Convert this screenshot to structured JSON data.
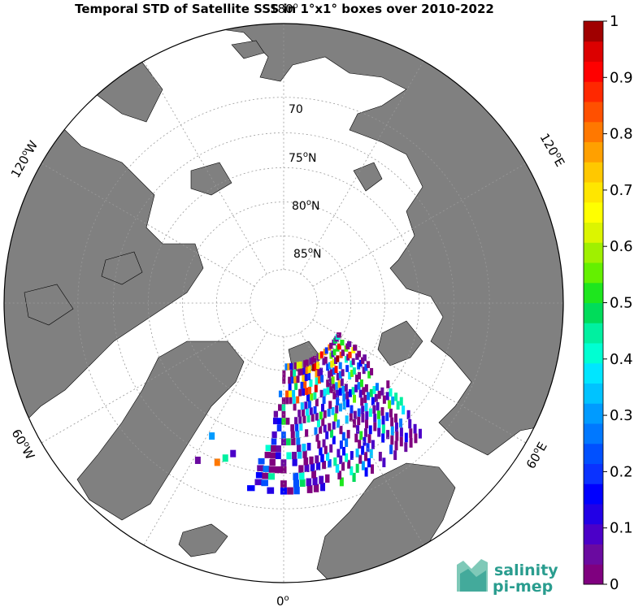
{
  "title": "Temporal STD of Satellite SSS in 1°x1° boxes over 2010-2022",
  "map": {
    "projection": "north polar stereographic",
    "land_color": "#808080",
    "ocean_color": "#ffffff",
    "lat_labels": [
      "70",
      "75",
      "80",
      "85"
    ],
    "lat_suffix": "N",
    "lon_labels": {
      "top": "180",
      "bottom": "0",
      "left_upper": "120",
      "left_lower": "60",
      "right_upper": "120",
      "right_lower": "60"
    },
    "lon_suffix_w": "W",
    "lon_suffix_e": "E",
    "degree_mark": "o"
  },
  "colorbar": {
    "ticks": [
      "0",
      "0.1",
      "0.2",
      "0.3",
      "0.4",
      "0.5",
      "0.6",
      "0.7",
      "0.8",
      "0.9",
      "1"
    ],
    "range": [
      0,
      1
    ],
    "colors": [
      "#7f007f",
      "#6a0aa0",
      "#4b00c8",
      "#2200e6",
      "#0000ff",
      "#0a32ff",
      "#0050ff",
      "#0078ff",
      "#009bff",
      "#00c3ff",
      "#00e6ff",
      "#00ffd2",
      "#00f0a0",
      "#00dc5a",
      "#1ee61e",
      "#64f000",
      "#a0f000",
      "#dcf500",
      "#ffff00",
      "#ffe600",
      "#ffc800",
      "#ffa000",
      "#ff7800",
      "#ff5000",
      "#ff2800",
      "#ff0000",
      "#dc0000",
      "#a00000"
    ]
  },
  "logo": {
    "line1": "salinity",
    "line2": "pi-mep",
    "color": "#2a9d8f"
  }
}
